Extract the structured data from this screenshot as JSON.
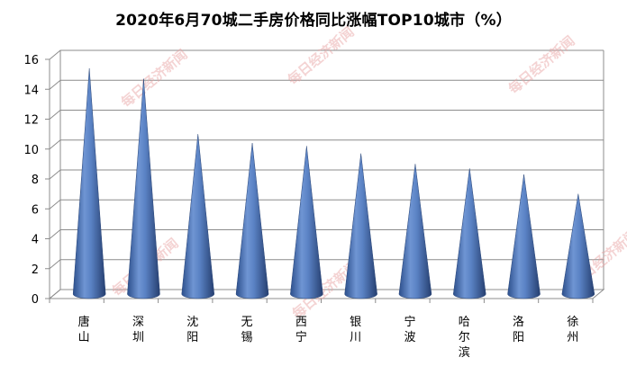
{
  "chart_data": {
    "type": "bar",
    "title": "2020年6月70城二手房价格同比涨幅TOP10城市（%）",
    "categories": [
      "唐山",
      "深圳",
      "沈阳",
      "无锡",
      "西宁",
      "银川",
      "宁波",
      "哈尔滨",
      "洛阳",
      "徐州"
    ],
    "values": [
      15.1,
      14.4,
      10.7,
      10.1,
      9.9,
      9.4,
      8.7,
      8.4,
      8.0,
      6.7
    ],
    "ylim": [
      0,
      16
    ],
    "yticks": [
      0,
      2,
      4,
      6,
      8,
      10,
      12,
      14,
      16
    ],
    "grid": true,
    "bar_shape": "cone",
    "bar_color": "#4a74b8",
    "watermark": "每日经济新闻"
  }
}
